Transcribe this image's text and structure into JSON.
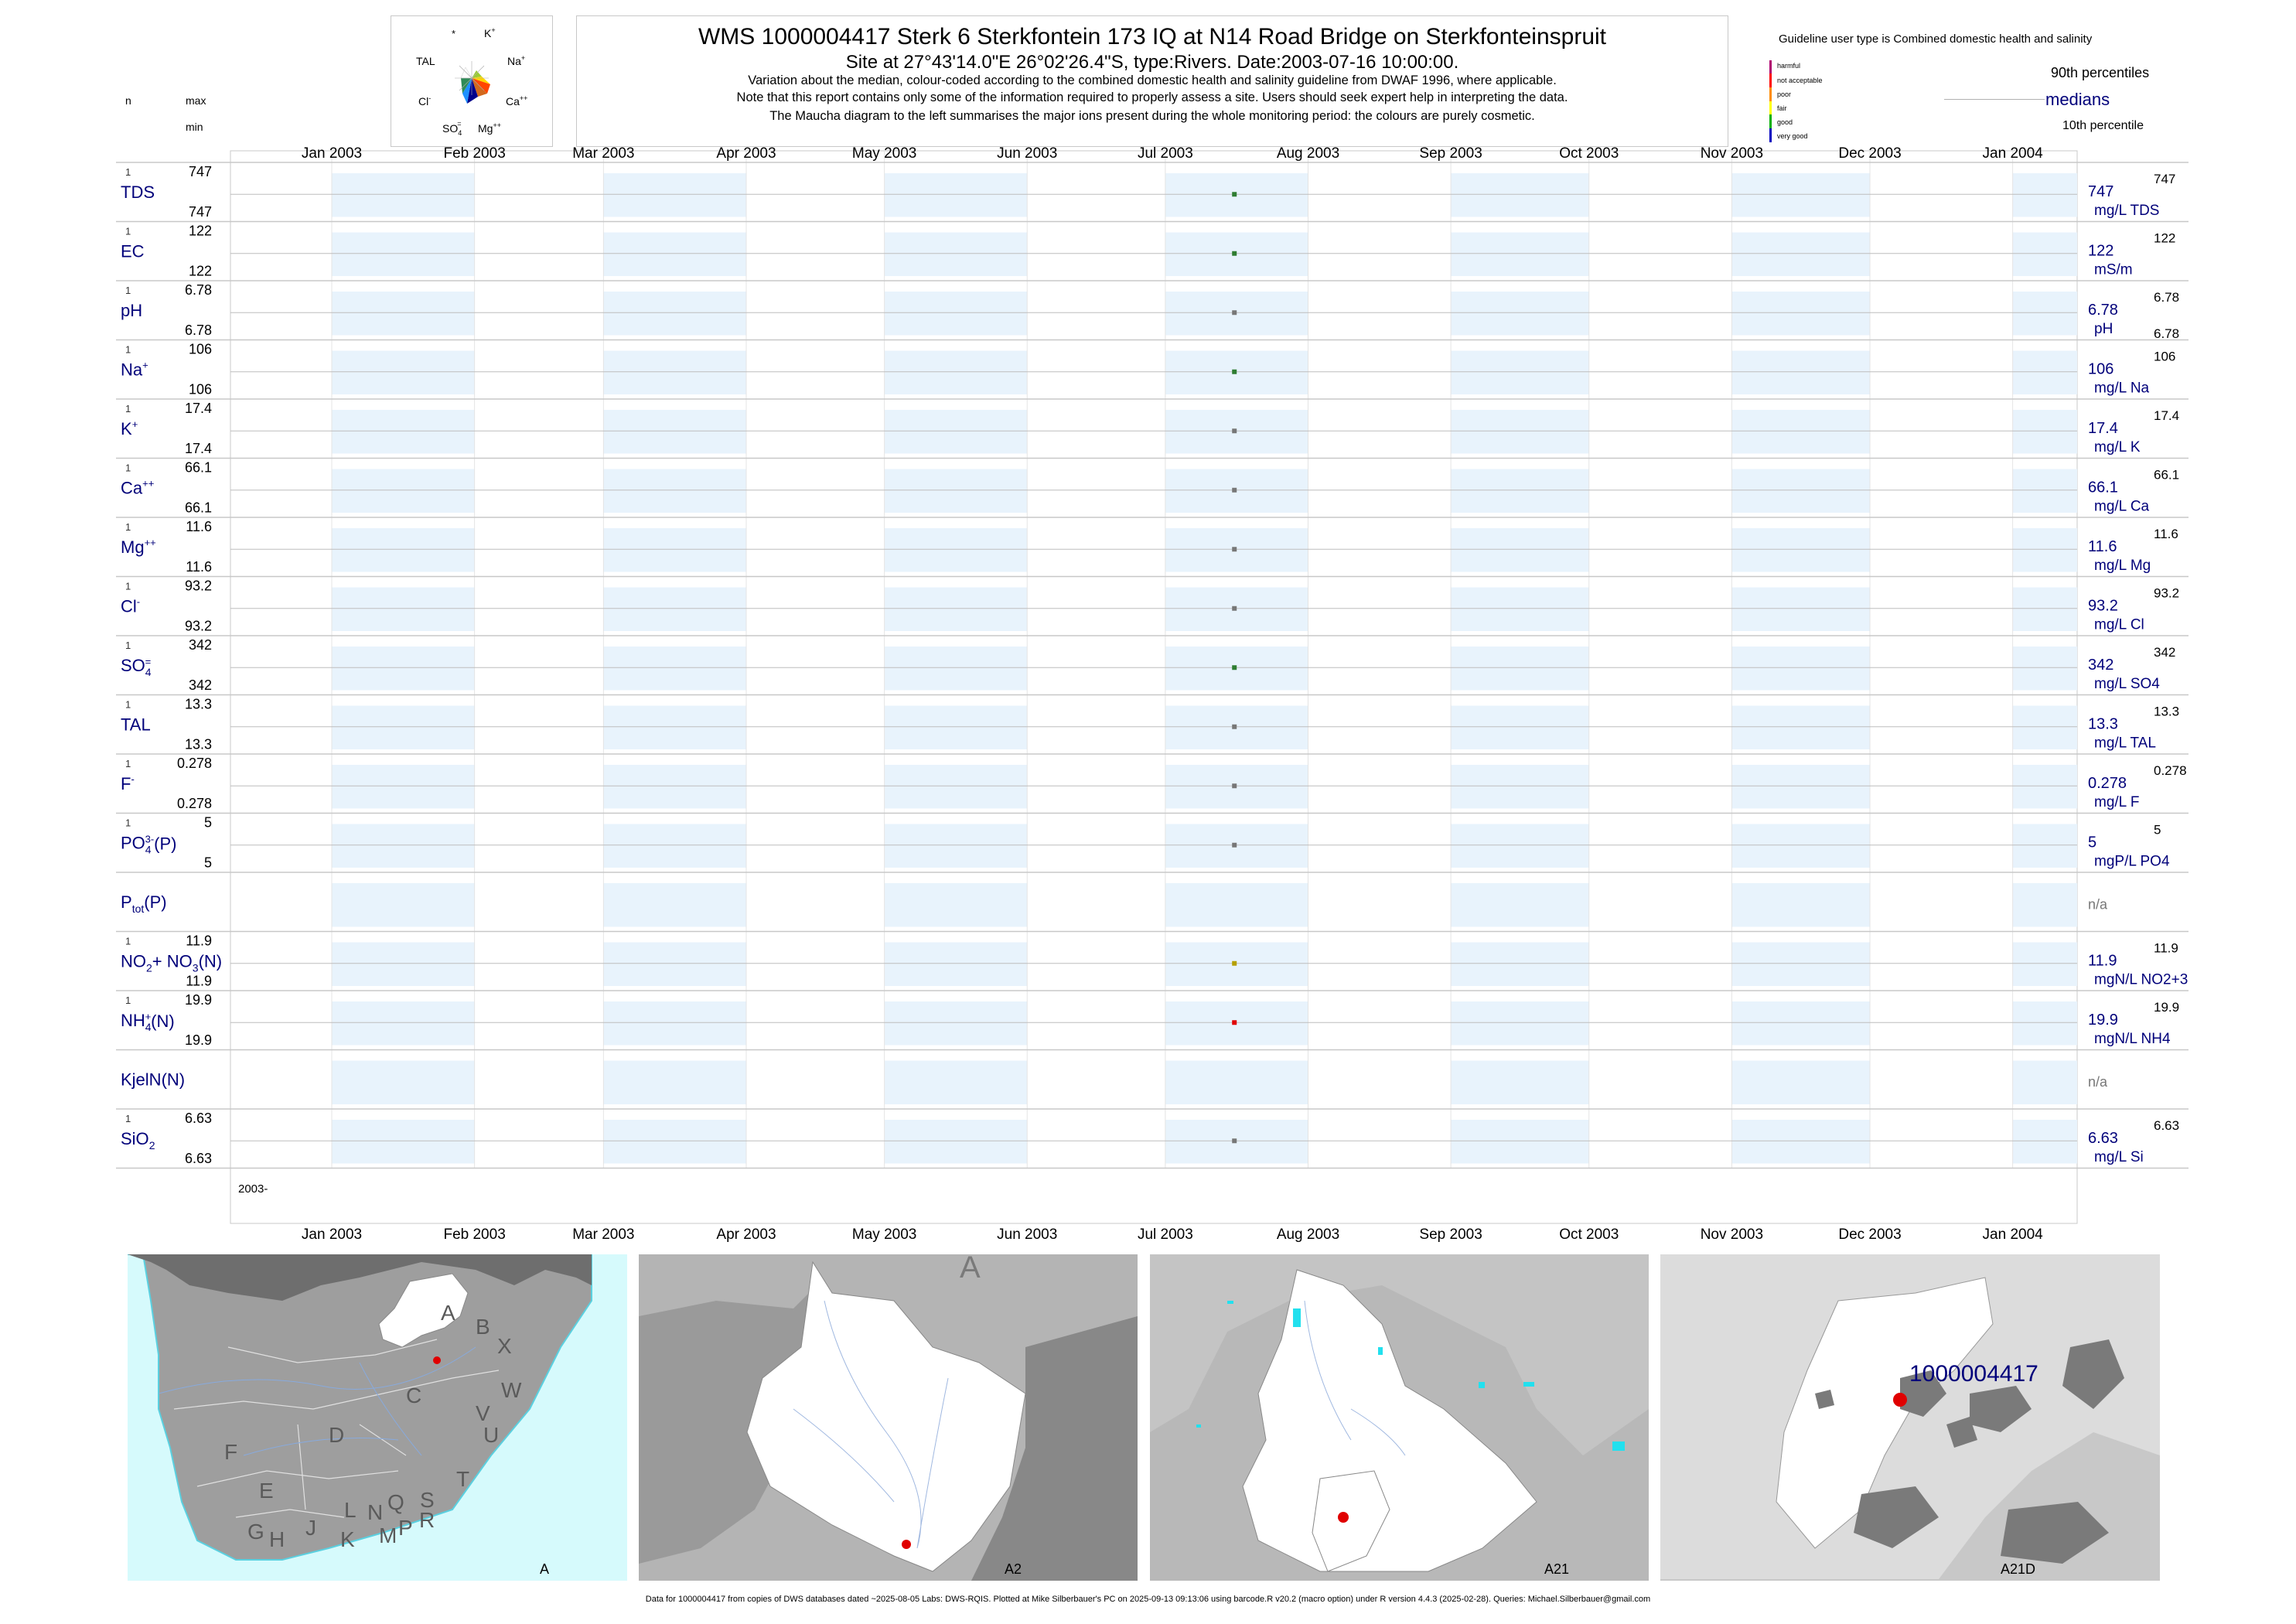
{
  "header": {
    "title": "WMS 1000004417  Sterk 6 Sterkfontein 173 IQ at N14 Road Bridge on Sterkfonteinspruit",
    "subtitle": "Site at 27°43'14.0\"E 26°02'26.4\"S, type:Rivers. Date:2003-07-16 10:00:00.",
    "notes": [
      "Variation about the median,  colour-coded according to the combined domestic health and salinity guideline from DWAF 1996, where applicable.",
      "Note that this report contains only some of the information required to properly assess a site. Users should seek expert help in interpreting the data.",
      "The Maucha diagram to the left summarises the major ions present during the whole monitoring period: the colours are purely cosmetic."
    ]
  },
  "maucha": {
    "labels": [
      "K",
      "Na",
      "Ca",
      "Mg",
      "SO4",
      "Cl",
      "TAL",
      "*"
    ],
    "label_text": {
      "k": "K+",
      "na": "Na+",
      "ca": "Ca++",
      "mg": "Mg++",
      "so4": "SO4=",
      "cl": "Cl-",
      "tal": "TAL",
      "star": "*"
    }
  },
  "left_header": {
    "n": "n",
    "max": "max",
    "min": "min"
  },
  "legend": {
    "guideline_title": "Guideline user type is Combined domestic health and salinity",
    "classes": [
      {
        "label": "harmful",
        "color": "#b00070"
      },
      {
        "label": "not acceptable",
        "color": "#ff0000"
      },
      {
        "label": "poor",
        "color": "#ff8c00"
      },
      {
        "label": "fair",
        "color": "#ffff00"
      },
      {
        "label": "good",
        "color": "#00b000"
      },
      {
        "label": "very good",
        "color": "#0000c0"
      }
    ],
    "p90": "90th percentiles",
    "medians": "medians",
    "p10": "10th percentile"
  },
  "chart_data": {
    "type": "scatter",
    "x_axis_labels": [
      "Jan 2003",
      "Feb 2003",
      "Mar 2003",
      "Apr 2003",
      "May 2003",
      "Jun 2003",
      "Jul 2003",
      "Aug 2003",
      "Sep 2003",
      "Oct 2003",
      "Nov 2003",
      "Dec 2003",
      "Jan 2004"
    ],
    "x_range": [
      "2002-12-10",
      "2004-01-15"
    ],
    "bottom_label": "2003-",
    "sample_date": "2003-07-16",
    "rows": [
      {
        "label": "TDS",
        "n": "1",
        "max": "747",
        "min": "747",
        "median": "747",
        "p90": "747",
        "unit": "mg/L TDS",
        "value": 747,
        "color": "#2e7d32"
      },
      {
        "label": "EC",
        "n": "1",
        "max": "122",
        "min": "122",
        "median": "122",
        "p90": "122",
        "unit": "mS/m",
        "value": 122,
        "color": "#2e7d32"
      },
      {
        "label": "pH",
        "n": "1",
        "max": "6.78",
        "min": "6.78",
        "median": "6.78",
        "p90": "6.78",
        "p10": "6.78",
        "unit": "pH",
        "value": 6.78,
        "color": "#777777"
      },
      {
        "label": "Na",
        "sup": "+",
        "n": "1",
        "max": "106",
        "min": "106",
        "median": "106",
        "p90": "106",
        "unit": "mg/L Na",
        "value": 106,
        "color": "#2e7d32"
      },
      {
        "label": "K",
        "sup": "+",
        "n": "1",
        "max": "17.4",
        "min": "17.4",
        "median": "17.4",
        "p90": "17.4",
        "unit": "mg/L K",
        "value": 17.4,
        "color": "#777777"
      },
      {
        "label": "Ca",
        "sup": "++",
        "n": "1",
        "max": "66.1",
        "min": "66.1",
        "median": "66.1",
        "p90": "66.1",
        "unit": "mg/L Ca",
        "value": 66.1,
        "color": "#777777"
      },
      {
        "label": "Mg",
        "sup": "++",
        "n": "1",
        "max": "11.6",
        "min": "11.6",
        "median": "11.6",
        "p90": "11.6",
        "unit": "mg/L Mg",
        "value": 11.6,
        "color": "#777777"
      },
      {
        "label": "Cl",
        "sup": "-",
        "n": "1",
        "max": "93.2",
        "min": "93.2",
        "median": "93.2",
        "p90": "93.2",
        "unit": "mg/L Cl",
        "value": 93.2,
        "color": "#777777"
      },
      {
        "label": "SO",
        "sub": "4",
        "sup": "=",
        "n": "1",
        "max": "342",
        "min": "342",
        "median": "342",
        "p90": "342",
        "unit": "mg/L SO4",
        "value": 342,
        "color": "#2e7d32"
      },
      {
        "label": "TAL",
        "n": "1",
        "max": "13.3",
        "min": "13.3",
        "median": "13.3",
        "p90": "13.3",
        "unit": "mg/L TAL",
        "value": 13.3,
        "color": "#777777"
      },
      {
        "label": "F",
        "sup": "-",
        "n": "1",
        "max": "0.278",
        "min": "0.278",
        "median": "0.278",
        "p90": "0.278",
        "unit": "mg/L F",
        "value": 0.278,
        "color": "#777777"
      },
      {
        "label": "PO",
        "sub": "4",
        "sup": "3-",
        "suffix": "(P)",
        "n": "1",
        "max": "5",
        "min": "5",
        "median": "5",
        "p90": "5",
        "unit": "mgP/L PO4",
        "value": 5,
        "color": "#777777"
      },
      {
        "label": "P",
        "sub": "tot",
        "suffix": "(P)",
        "na": "n/a"
      },
      {
        "label": "NO",
        "sub": "2",
        "mid": "+ NO",
        "sub2": "3",
        "suffix": "(N)",
        "n": "1",
        "max": "11.9",
        "min": "11.9",
        "median": "11.9",
        "p90": "11.9",
        "unit": "mgN/L NO2+3",
        "value": 11.9,
        "color": "#b5a000"
      },
      {
        "label": "NH",
        "sub": "4",
        "sup": "+",
        "suffix": "(N)",
        "n": "1",
        "max": "19.9",
        "min": "19.9",
        "median": "19.9",
        "p90": "19.9",
        "unit": "mgN/L NH4",
        "value": 19.9,
        "color": "#e00000"
      },
      {
        "label": "KjelN(N)",
        "na": "n/a"
      },
      {
        "label": "SiO",
        "sub": "2",
        "n": "1",
        "max": "6.63",
        "min": "6.63",
        "median": "6.63",
        "p90": "6.63",
        "unit": "mg/L Si",
        "value": 6.63,
        "color": "#777777"
      }
    ]
  },
  "maps": [
    {
      "caption": "A",
      "region_labels": [
        "A",
        "B",
        "X",
        "W",
        "C",
        "V",
        "U",
        "D",
        "T",
        "F",
        "E",
        "G",
        "H",
        "J",
        "K",
        "L",
        "M",
        "N",
        "P",
        "Q",
        "R",
        "S"
      ]
    },
    {
      "caption": "A2",
      "corner_label": "A"
    },
    {
      "caption": "A21"
    },
    {
      "caption": "A21D",
      "site_label": "1000004417"
    }
  ],
  "footer": "Data for 1000004417 from copies of DWS databases dated ~2025-08-05 Labs: DWS-RQIS. Plotted at Mike Silberbauer's PC on 2025-09-13 09:13:06 using barcode.R v20.2 (macro option) under R version 4.4.3 (2025-02-28). Queries: Michael.Silberbauer@gmail.com"
}
